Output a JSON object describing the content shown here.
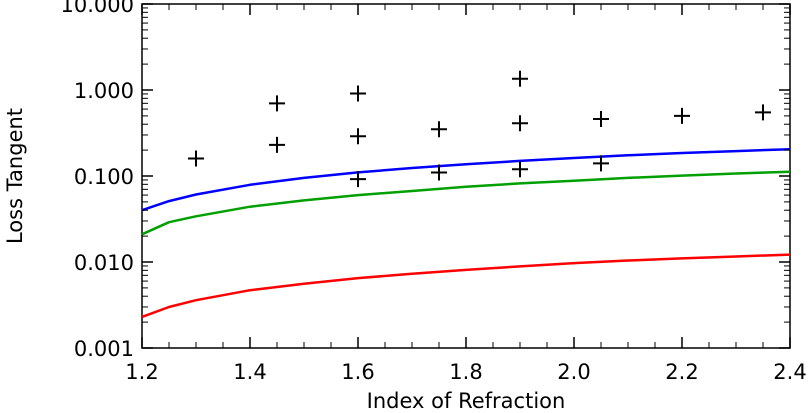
{
  "chart_data": {
    "type": "scatter",
    "xlabel": "Index of Refraction",
    "ylabel": "Loss Tangent",
    "xlim": [
      1.2,
      2.4
    ],
    "ylim": [
      0.001,
      10
    ],
    "yscale": "log",
    "grid": false,
    "x_ticks": [
      {
        "value": 1.2,
        "label": "1.2"
      },
      {
        "value": 1.4,
        "label": "1.4"
      },
      {
        "value": 1.6,
        "label": "1.6"
      },
      {
        "value": 1.8,
        "label": "1.8"
      },
      {
        "value": 2.0,
        "label": "2.0"
      },
      {
        "value": 2.2,
        "label": "2.2"
      },
      {
        "value": 2.4,
        "label": "2.4"
      }
    ],
    "y_ticks": [
      {
        "value": 0.001,
        "label": "0.001"
      },
      {
        "value": 0.01,
        "label": "0.010"
      },
      {
        "value": 0.1,
        "label": "0.100"
      },
      {
        "value": 1,
        "label": "1.000"
      },
      {
        "value": 10,
        "label": "10.000"
      }
    ],
    "points": [
      {
        "x": 1.3,
        "y": 0.16
      },
      {
        "x": 1.45,
        "y": 0.23
      },
      {
        "x": 1.45,
        "y": 0.7
      },
      {
        "x": 1.6,
        "y": 0.092
      },
      {
        "x": 1.6,
        "y": 0.29
      },
      {
        "x": 1.6,
        "y": 0.91
      },
      {
        "x": 1.75,
        "y": 0.11
      },
      {
        "x": 1.75,
        "y": 0.35
      },
      {
        "x": 1.9,
        "y": 0.12
      },
      {
        "x": 1.9,
        "y": 0.41
      },
      {
        "x": 1.9,
        "y": 1.35
      },
      {
        "x": 2.05,
        "y": 0.14
      },
      {
        "x": 2.05,
        "y": 0.46
      },
      {
        "x": 2.2,
        "y": 0.5
      },
      {
        "x": 2.35,
        "y": 0.55
      }
    ],
    "series": [
      {
        "color": "#0000ff",
        "x": [
          1.2,
          1.25,
          1.3,
          1.4,
          1.5,
          1.6,
          1.7,
          1.8,
          1.9,
          2.0,
          2.1,
          2.2,
          2.3,
          2.4
        ],
        "y": [
          0.04,
          0.051,
          0.061,
          0.079,
          0.095,
          0.11,
          0.124,
          0.137,
          0.15,
          0.162,
          0.174,
          0.185,
          0.195,
          0.205
        ]
      },
      {
        "color": "#00a000",
        "x": [
          1.2,
          1.25,
          1.3,
          1.4,
          1.5,
          1.6,
          1.7,
          1.8,
          1.9,
          2.0,
          2.1,
          2.2,
          2.3,
          2.4
        ],
        "y": [
          0.021,
          0.029,
          0.034,
          0.044,
          0.052,
          0.06,
          0.067,
          0.075,
          0.082,
          0.088,
          0.095,
          0.101,
          0.107,
          0.112
        ]
      },
      {
        "color": "#ff0000",
        "x": [
          1.2,
          1.25,
          1.3,
          1.4,
          1.5,
          1.6,
          1.7,
          1.8,
          1.9,
          2.0,
          2.1,
          2.2,
          2.3,
          2.4
        ],
        "y": [
          0.0023,
          0.003,
          0.0036,
          0.0047,
          0.0056,
          0.0065,
          0.0073,
          0.0081,
          0.0089,
          0.0097,
          0.0104,
          0.011,
          0.0116,
          0.0122
        ]
      }
    ]
  }
}
